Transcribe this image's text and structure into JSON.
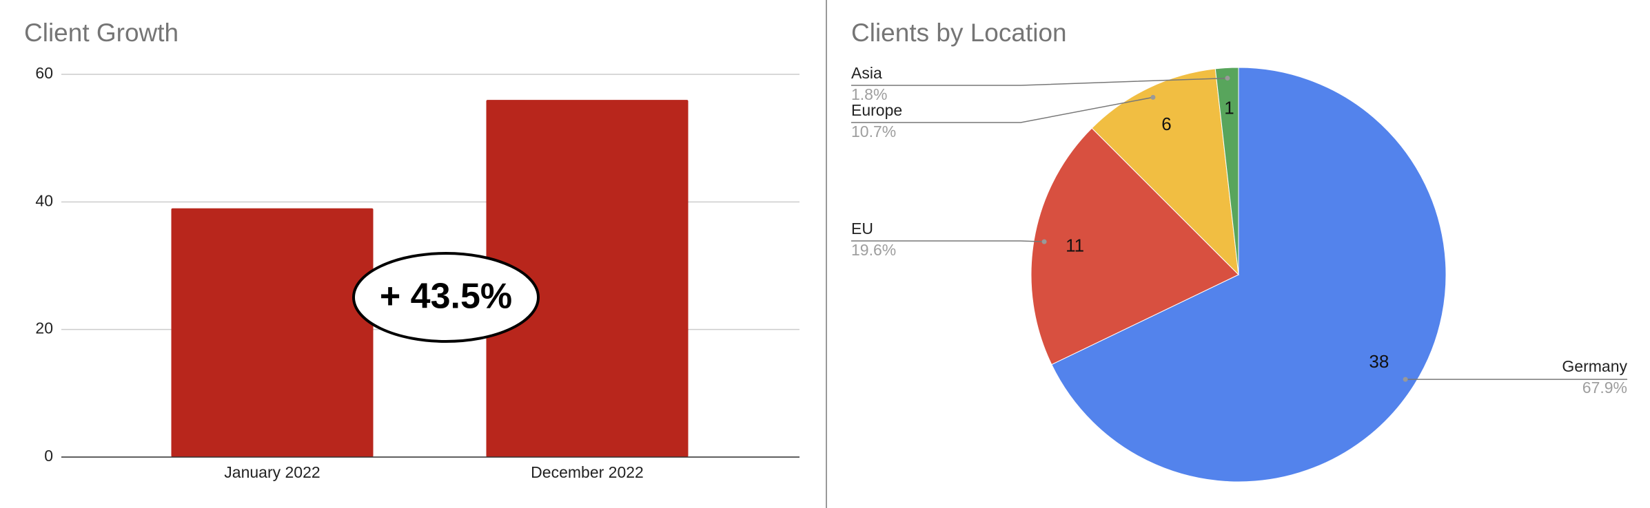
{
  "chart_data": [
    {
      "type": "bar",
      "title": "Client Growth",
      "categories": [
        "January 2022",
        "December 2022"
      ],
      "values": [
        39,
        56
      ],
      "color": "#b8261c",
      "ylim": [
        0,
        60
      ],
      "yticks": [
        0,
        20,
        40,
        60
      ],
      "grid": true,
      "annotation": "+ 43.5%"
    },
    {
      "type": "pie",
      "title": "Clients by Location",
      "categories": [
        "Germany",
        "EU",
        "Europe",
        "Asia"
      ],
      "values": [
        38,
        11,
        6,
        1
      ],
      "percent_labels": [
        "67.9%",
        "19.6%",
        "10.7%",
        "1.8%"
      ],
      "colors": [
        "#5383ec",
        "#d85040",
        "#f1be42",
        "#58a55c"
      ]
    }
  ]
}
